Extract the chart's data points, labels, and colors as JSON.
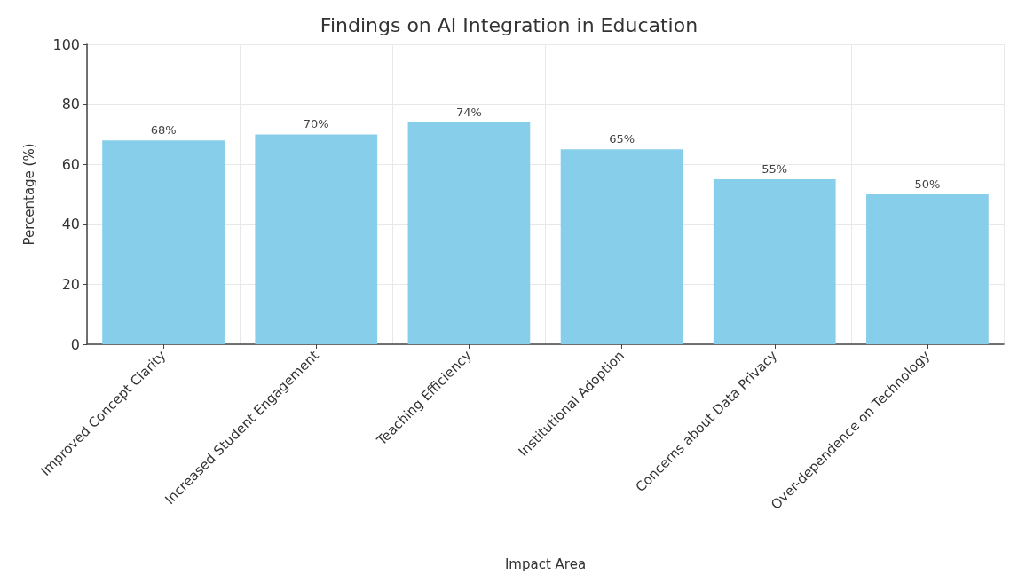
{
  "chart_data": {
    "type": "bar",
    "title": "Findings on AI Integration in Education",
    "xlabel": "Impact Area",
    "ylabel": "Percentage (%)",
    "categories": [
      "Improved Concept Clarity",
      "Increased Student Engagement",
      "Teaching Efficiency",
      "Institutional Adoption",
      "Concerns about Data Privacy",
      "Over-dependence on Technology"
    ],
    "values": [
      68,
      70,
      74,
      65,
      55,
      50
    ],
    "value_labels": [
      "68%",
      "70%",
      "74%",
      "65%",
      "55%",
      "50%"
    ],
    "color": "#87ceeb",
    "ylim": [
      0,
      100
    ],
    "yticks": [
      0,
      20,
      40,
      60,
      80,
      100
    ],
    "grid": true
  }
}
